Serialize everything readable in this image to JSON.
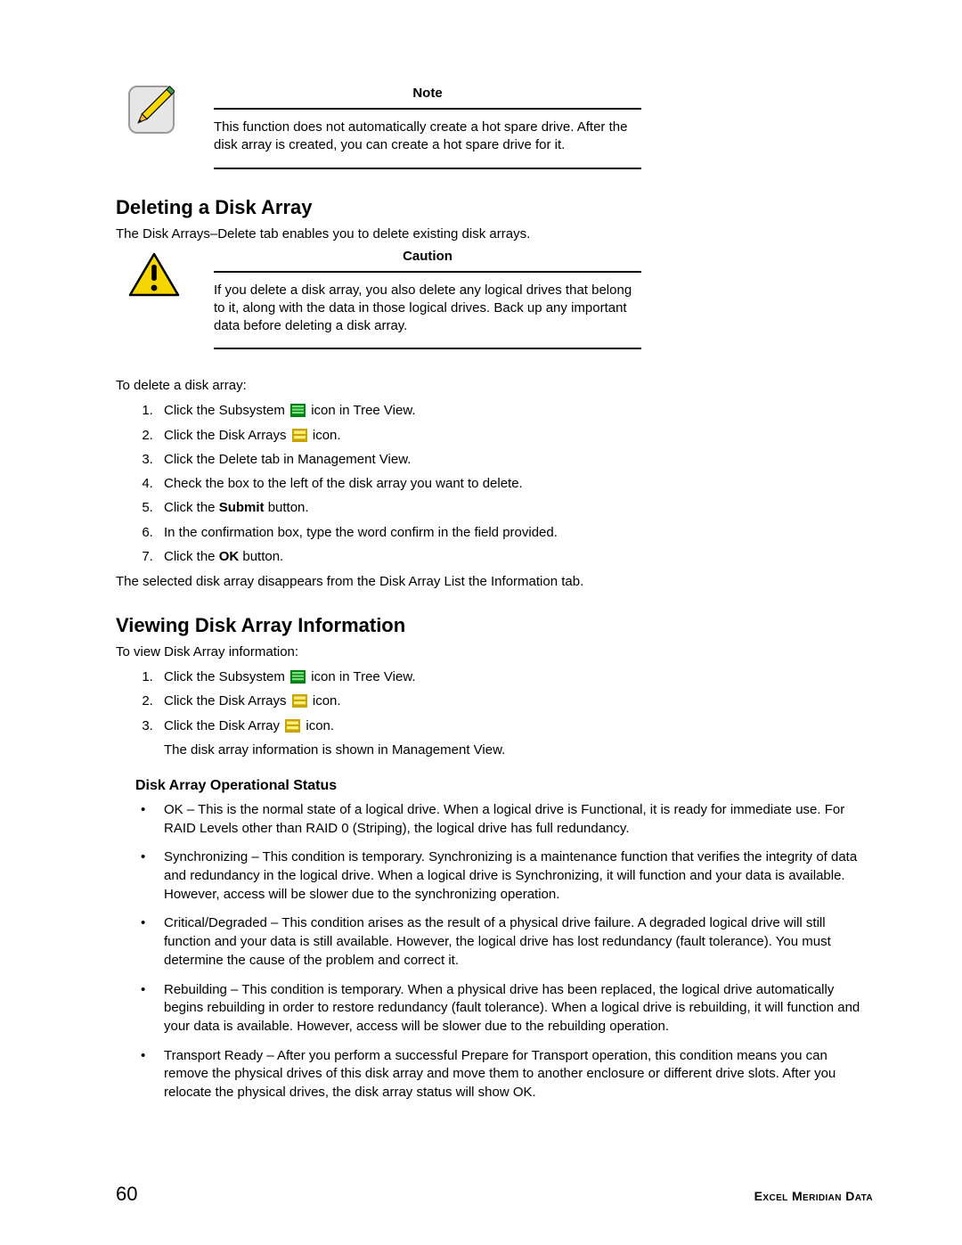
{
  "colors": {
    "note_bg": "#e6e6e6",
    "note_border": "#b5b5b5",
    "pencil_body": "#f6d600",
    "pencil_tip": "#efb545",
    "caution_fill": "#f6d600",
    "caution_stroke": "#000000",
    "subsystem_icon": "#008015",
    "diskarrays_icon": "#c9a400",
    "rule": "#000000"
  },
  "callout_note": {
    "title": "Note",
    "text": "This function does not automatically create a hot spare drive. After the disk array is created, you can create a hot spare drive for it."
  },
  "section_delete": {
    "heading": "Deleting a Disk Array",
    "intro": "The Disk Arrays–Delete tab enables you to delete existing disk arrays.",
    "caution": {
      "title": "Caution",
      "text": "If you delete a disk array, you also delete any logical drives that belong to it, along with the data in those logical drives. Back up any important data before deleting a disk array."
    },
    "steps_intro": "To delete a disk array:",
    "steps": [
      {
        "pre": "Click the Subsystem ",
        "icon": "subsystem",
        "post": " icon in Tree View."
      },
      {
        "pre": "Click the Disk Arrays ",
        "icon": "diskarrays",
        "post": " icon."
      },
      {
        "text": "Click the Delete tab in Management View."
      },
      {
        "text": "Check the box to the left of the disk array you want to delete."
      },
      {
        "pre": "Click the ",
        "bold": "Submit",
        "post": " button."
      },
      {
        "text": "In the confirmation box, type the word confirm in the field provided."
      },
      {
        "pre": "Click the ",
        "bold": "OK",
        "post": " button."
      }
    ],
    "after": "The selected disk array disappears from the Disk Array List the Information tab."
  },
  "section_view": {
    "heading": "Viewing Disk Array Information",
    "steps_intro": "To view Disk Array information:",
    "steps": [
      {
        "pre": "Click the Subsystem ",
        "icon": "subsystem",
        "post": " icon in Tree View."
      },
      {
        "pre": "Click the Disk Arrays ",
        "icon": "diskarrays",
        "post": " icon."
      },
      {
        "pre": "Click the Disk Array ",
        "icon": "diskarrays",
        "post": " icon.",
        "sub": "The disk array information is shown in Management View."
      }
    ],
    "sub_heading": "Disk Array Operational Status",
    "status_items": [
      "OK – This is the normal state of a logical drive. When a logical drive is Functional, it is ready for immediate use. For RAID Levels other than RAID 0 (Striping), the logical drive has full redundancy.",
      "Synchronizing – This condition is temporary. Synchronizing is a maintenance function that verifies the integrity of data and redundancy in the logical drive. When a logical drive is Synchronizing, it will function and your data is available. However, access will be slower due to the synchronizing operation.",
      "Critical/Degraded – This condition arises as the result of a physical drive failure. A degraded logical drive will still function and your data is still available. However, the logical drive has lost redundancy (fault tolerance). You must determine the cause of the problem and correct it.",
      "Rebuilding – This condition is temporary. When a physical drive has been replaced, the logical drive automatically begins rebuilding in order to restore redundancy (fault tolerance). When a logical drive is rebuilding, it will function and your data is available. However, access will be slower due to the rebuilding operation.",
      "Transport Ready – After you perform a successful Prepare for Transport operation, this condition means you can remove the physical drives of this disk array and move them to another enclosure or different drive slots. After you relocate the physical drives, the disk array status will show OK."
    ]
  },
  "footer": {
    "page": "60",
    "title": "Excel Meridian Data"
  }
}
